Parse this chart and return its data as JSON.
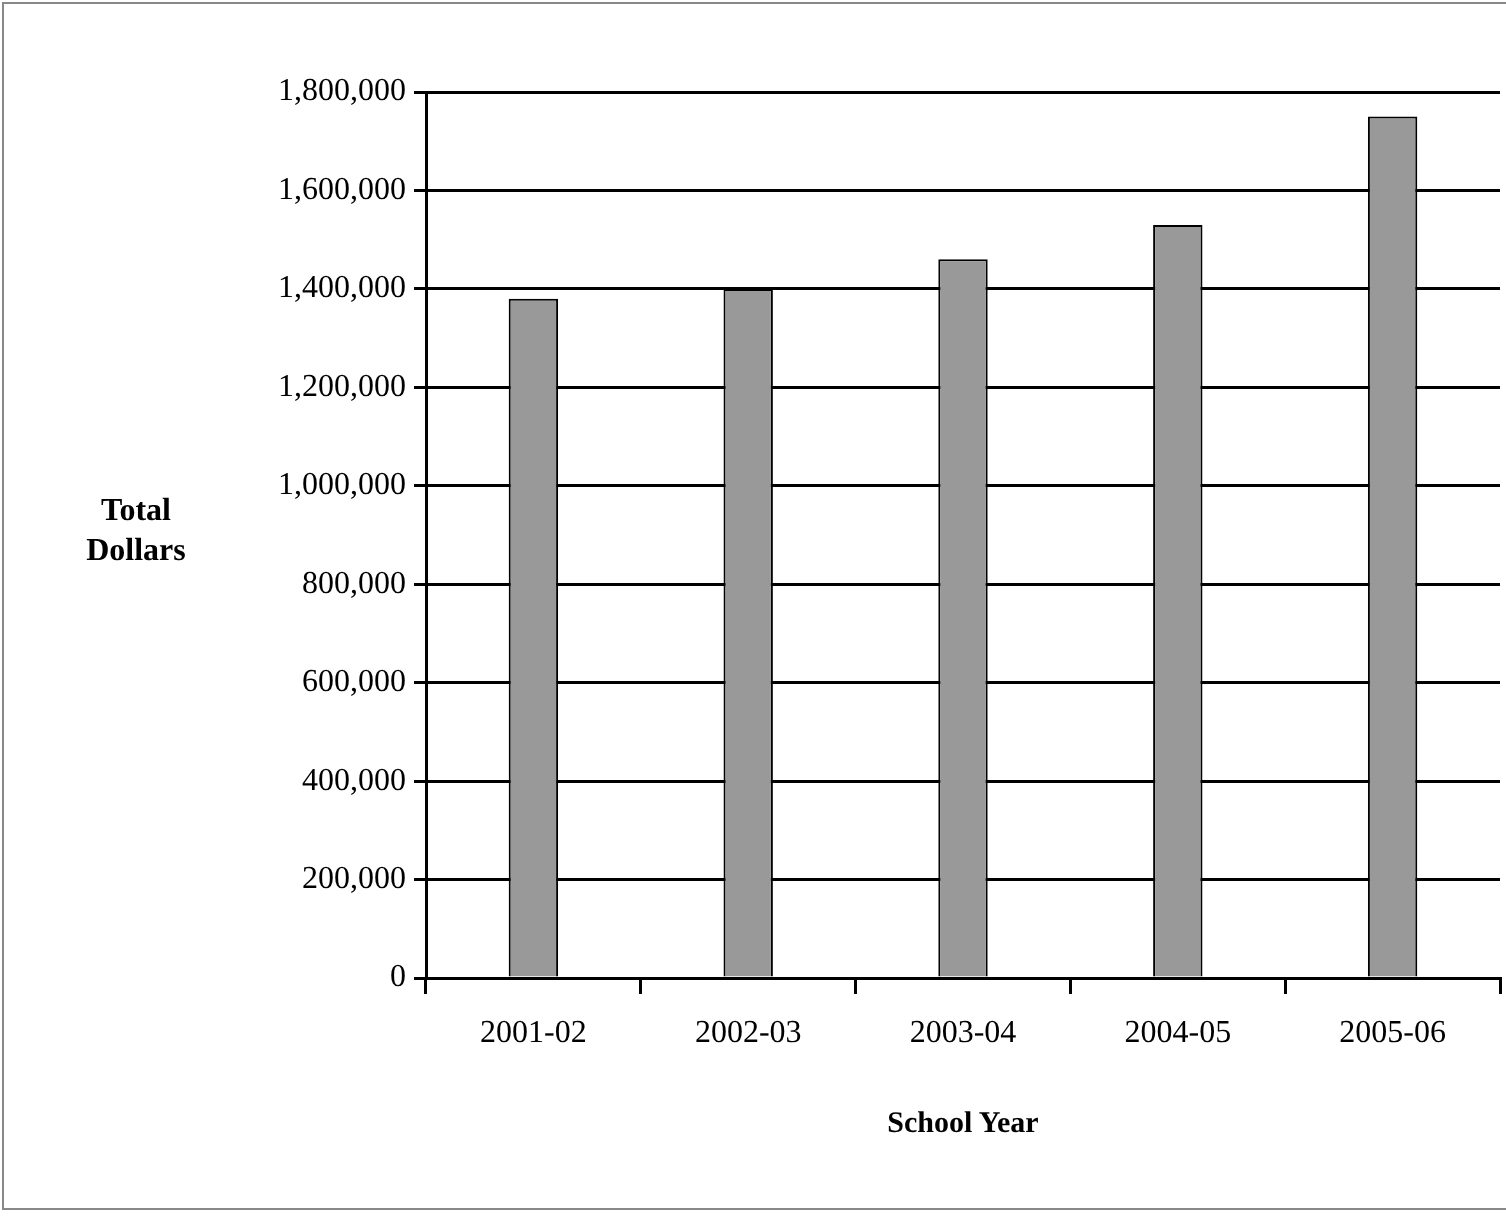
{
  "chart_data": {
    "type": "bar",
    "xlabel": "School Year",
    "ylabel": "Total Dollars",
    "categories": [
      "2001-02",
      "2002-03",
      "2003-04",
      "2004-05",
      "2005-06"
    ],
    "values": [
      1380000,
      1400000,
      1460000,
      1530000,
      1750000
    ],
    "color": "#999999",
    "ylim": [
      0,
      1800000
    ],
    "yticks": [
      0,
      {
        "value": 200000,
        "label": "200,000"
      },
      {
        "value": 400000,
        "label": "400,000"
      },
      {
        "value": 600000,
        "label": "600,000"
      },
      {
        "value": 800000,
        "label": "800,000"
      },
      {
        "value": 1000000,
        "label": "1,000,000"
      },
      {
        "value": 1200000,
        "label": "1,200,000"
      },
      {
        "value": 1400000,
        "label": "1,400,000"
      },
      {
        "value": 1600000,
        "label": "1,600,000"
      },
      {
        "value": 1800000,
        "label": "1,800,000"
      }
    ],
    "grid": "y",
    "legend": false
  }
}
